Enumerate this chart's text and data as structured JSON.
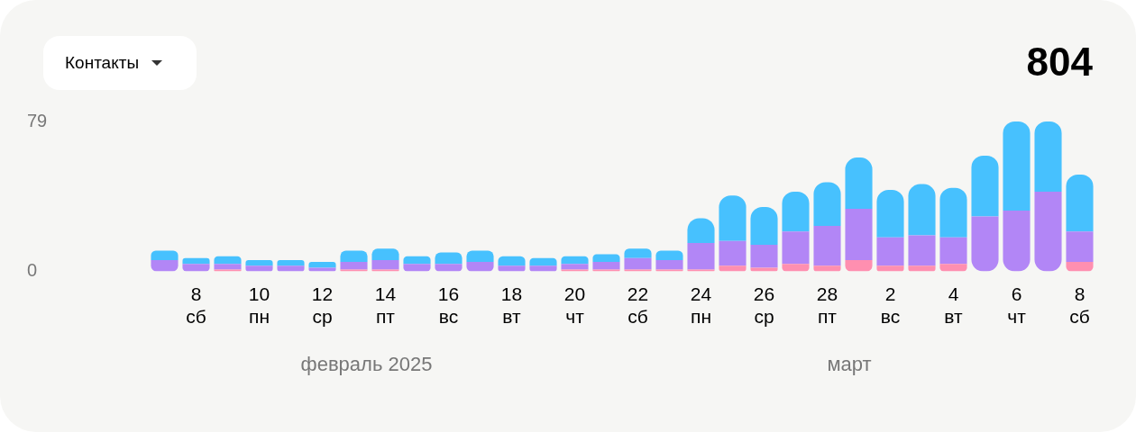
{
  "chart_data": {
    "type": "bar",
    "title": "Контакты",
    "stacked": true,
    "categories": [
      null,
      "8\nсб",
      null,
      "10\nпн",
      null,
      "12\nср",
      null,
      "14\nпт",
      null,
      "16\nвс",
      null,
      "18\nвт",
      null,
      "20\nчт",
      null,
      "22\nсб",
      null,
      "24\nпн",
      null,
      "26\nср",
      null,
      "28\nпт",
      null,
      "2\nвс",
      null,
      "4\nвт",
      null,
      "6\nчт",
      null,
      "8\nсб"
    ],
    "series": [
      {
        "color": "#ff8fb0",
        "values": [
          0,
          0,
          1,
          0,
          0,
          0,
          1,
          1,
          0,
          0,
          0,
          0,
          0,
          1,
          1,
          1,
          1,
          1,
          3,
          2,
          4,
          3,
          6,
          3,
          3,
          4,
          0,
          0,
          0,
          5
        ]
      },
      {
        "color": "#b286f6",
        "values": [
          6,
          4,
          3,
          3,
          3,
          2,
          4,
          5,
          4,
          4,
          5,
          3,
          3,
          3,
          4,
          6,
          5,
          14,
          13,
          12,
          17,
          21,
          27,
          15,
          16,
          14,
          29,
          32,
          42,
          16
        ]
      },
      {
        "color": "#47c1fe",
        "values": [
          5,
          3,
          4,
          3,
          3,
          3,
          6,
          6,
          4,
          6,
          6,
          5,
          4,
          4,
          4,
          5,
          5,
          13,
          24,
          20,
          21,
          23,
          27,
          25,
          27,
          26,
          32,
          47,
          37,
          30
        ]
      }
    ],
    "ylim": [
      0,
      79
    ],
    "yticks": [
      0,
      79
    ],
    "grid": false,
    "legend": false,
    "annotations": [
      "804",
      "февраль 2025",
      "март"
    ]
  }
}
